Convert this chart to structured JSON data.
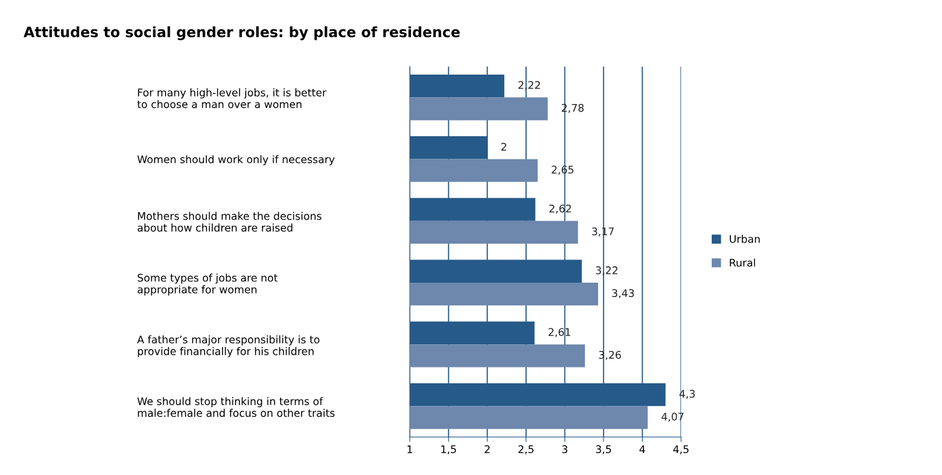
{
  "chart_data": {
    "type": "bar",
    "orientation": "horizontal",
    "title": "Attitudes to social gender roles: by place of residence",
    "categories": [
      "For many high-level jobs, it is better\nto choose a man over a women",
      "Women should work only if necessary",
      "Mothers should make the decisions\nabout how children are raised",
      "Some types of jobs are not\nappropriate for women",
      "A father’s major responsibility is to\nprovide financially for his children",
      "We should stop thinking in terms of\nmale:female and focus on other traits"
    ],
    "series": [
      {
        "name": "Urban",
        "color": "#265a88",
        "values": [
          2.22,
          2,
          2.62,
          3.22,
          2.61,
          4.3
        ],
        "value_labels": [
          "2,22",
          "2",
          "2,62",
          "3,22",
          "2,61",
          "4,3"
        ]
      },
      {
        "name": "Rural",
        "color": "#6d87ad",
        "values": [
          2.78,
          2.65,
          3.17,
          3.43,
          3.26,
          4.07
        ],
        "value_labels": [
          "2,78",
          "2,65",
          "3,17",
          "3,43",
          "3,26",
          "4,07"
        ]
      }
    ],
    "xlim": [
      1,
      4.5
    ],
    "xticks": [
      1,
      {
        "value": 1.5,
        "label": "1,5"
      },
      2,
      {
        "value": 2.5,
        "label": "2,5"
      },
      3,
      {
        "value": 3.5,
        "label": "3,5"
      },
      4,
      {
        "value": 4.5,
        "label": "4,5"
      }
    ],
    "grid": "x",
    "legend": "right"
  }
}
